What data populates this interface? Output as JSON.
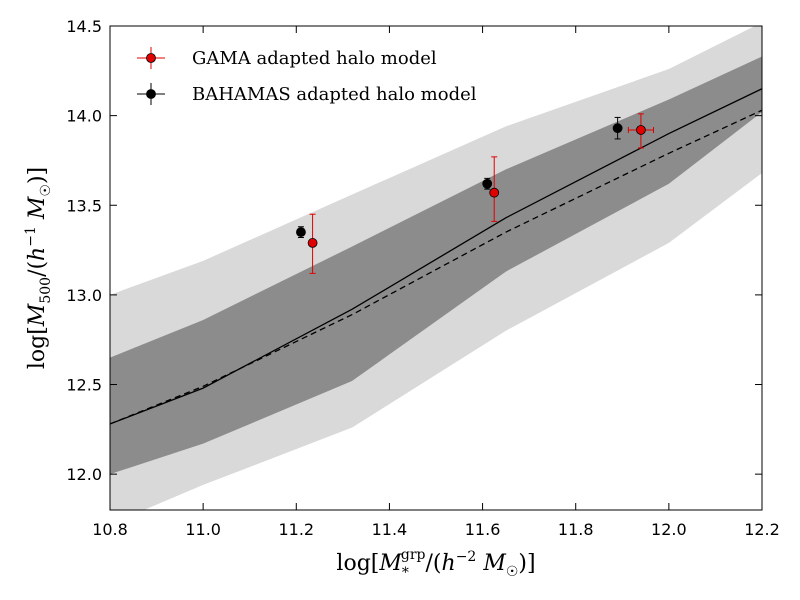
{
  "chart_data": {
    "type": "scatter",
    "xlabel": "log[M*^grp/(h^-2 M☉)]",
    "ylabel": "log[M500/(h^-1 M☉)]",
    "xlim": [
      10.8,
      12.2
    ],
    "ylim": [
      11.8,
      14.5
    ],
    "x_ticks": [
      "10.8",
      "11.0",
      "11.2",
      "11.4",
      "11.6",
      "11.8",
      "12.0",
      "12.2"
    ],
    "y_ticks": [
      "12.0",
      "12.5",
      "13.0",
      "13.5",
      "14.0",
      "14.5"
    ],
    "grid": false,
    "legend_position": "top-left",
    "bands": [
      {
        "color": "#d9d9d9",
        "x": [
          10.8,
          11.0,
          11.32,
          11.65,
          12.0,
          12.2
        ],
        "upper": [
          13.0,
          13.19,
          13.56,
          13.94,
          14.26,
          14.52
        ],
        "lower": [
          11.72,
          11.94,
          12.26,
          12.8,
          13.29,
          13.68
        ]
      },
      {
        "color": "#8c8c8c",
        "x": [
          10.8,
          11.0,
          11.32,
          11.65,
          12.0,
          12.2
        ],
        "upper": [
          12.65,
          12.86,
          13.27,
          13.7,
          14.09,
          14.33
        ],
        "lower": [
          12.0,
          12.17,
          12.52,
          13.13,
          13.62,
          14.02
        ]
      }
    ],
    "lines": [
      {
        "style": "solid",
        "color": "#000000",
        "x": [
          10.8,
          11.0,
          11.32,
          11.65,
          12.0,
          12.2
        ],
        "y": [
          12.28,
          12.48,
          12.92,
          13.43,
          13.9,
          14.15
        ]
      },
      {
        "style": "dashed",
        "color": "#000000",
        "x": [
          10.8,
          11.0,
          11.32,
          11.65,
          12.0,
          12.2
        ],
        "y": [
          12.28,
          12.49,
          12.89,
          13.35,
          13.79,
          14.03
        ]
      }
    ],
    "series": [
      {
        "name": "GAMA adapted halo model",
        "color": "#e00000",
        "points": [
          {
            "x": 11.235,
            "y": 13.29,
            "yerr_low": 0.17,
            "yerr_high": 0.16,
            "xerr_low": 0,
            "xerr_high": 0
          },
          {
            "x": 11.625,
            "y": 13.57,
            "yerr_low": 0.16,
            "yerr_high": 0.2,
            "xerr_low": 0,
            "xerr_high": 0
          },
          {
            "x": 11.94,
            "y": 13.92,
            "yerr_low": 0.1,
            "yerr_high": 0.09,
            "xerr_low": 0.027,
            "xerr_high": 0.027
          }
        ]
      },
      {
        "name": "BAHAMAS adapted halo model",
        "color": "#000000",
        "points": [
          {
            "x": 11.21,
            "y": 13.35,
            "yerr_low": 0.03,
            "yerr_high": 0.03,
            "xerr_low": 0,
            "xerr_high": 0
          },
          {
            "x": 11.61,
            "y": 13.62,
            "yerr_low": 0.03,
            "yerr_high": 0.03,
            "xerr_low": 0,
            "xerr_high": 0
          },
          {
            "x": 11.89,
            "y": 13.93,
            "yerr_low": 0.06,
            "yerr_high": 0.06,
            "xerr_low": 0,
            "xerr_high": 0
          }
        ]
      }
    ]
  }
}
